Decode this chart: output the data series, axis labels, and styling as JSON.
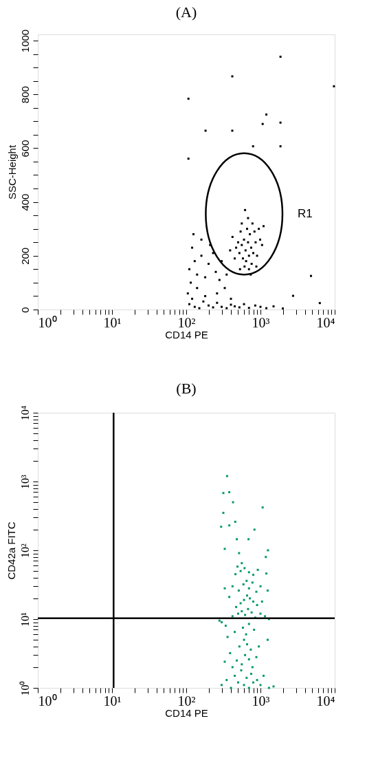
{
  "chart_data": [
    {
      "type": "scatter",
      "title": "(A)",
      "xlabel": "CD14 PE",
      "ylabel": "SSC-Height",
      "log": "x",
      "grid": false,
      "marker": "square",
      "annotations": [
        "R1"
      ],
      "xlim": [
        1,
        10000
      ],
      "ylim": [
        0,
        1023
      ],
      "xticks": [
        {
          "value": 1,
          "label": "10⁰"
        },
        {
          "value": 2,
          "label": null
        },
        {
          "value": 3,
          "label": null
        },
        {
          "value": 4,
          "label": null
        },
        {
          "value": 5,
          "label": null
        },
        {
          "value": 6,
          "label": null
        },
        {
          "value": 7,
          "label": null
        },
        {
          "value": 8,
          "label": null
        },
        {
          "value": 9,
          "label": null
        },
        {
          "value": 10,
          "label": "10¹"
        },
        {
          "value": 20,
          "label": null
        },
        {
          "value": 30,
          "label": null
        },
        {
          "value": 40,
          "label": null
        },
        {
          "value": 50,
          "label": null
        },
        {
          "value": 60,
          "label": null
        },
        {
          "value": 70,
          "label": null
        },
        {
          "value": 80,
          "label": null
        },
        {
          "value": 90,
          "label": null
        },
        {
          "value": 100,
          "label": "10²"
        },
        {
          "value": 200,
          "label": null
        },
        {
          "value": 300,
          "label": null
        },
        {
          "value": 400,
          "label": null
        },
        {
          "value": 500,
          "label": null
        },
        {
          "value": 600,
          "label": null
        },
        {
          "value": 700,
          "label": null
        },
        {
          "value": 800,
          "label": null
        },
        {
          "value": 900,
          "label": null
        },
        {
          "value": 1000,
          "label": "10³"
        },
        {
          "value": 2000,
          "label": null
        },
        {
          "value": 3000,
          "label": null
        },
        {
          "value": 4000,
          "label": null
        },
        {
          "value": 5000,
          "label": null
        },
        {
          "value": 6000,
          "label": null
        },
        {
          "value": 7000,
          "label": null
        },
        {
          "value": 8000,
          "label": null
        },
        {
          "value": 9000,
          "label": null
        },
        {
          "value": 10000,
          "label": "10⁴"
        }
      ],
      "yticks": [
        0,
        {
          "value": 50,
          "label": null
        },
        {
          "value": 100,
          "label": null
        },
        {
          "value": 150,
          "label": null
        },
        200,
        {
          "value": 250,
          "label": null
        },
        {
          "value": 300,
          "label": null
        },
        {
          "value": 350,
          "label": null
        },
        400,
        {
          "value": 450,
          "label": null
        },
        {
          "value": 500,
          "label": null
        },
        {
          "value": 550,
          "label": null
        },
        600,
        {
          "value": 650,
          "label": null
        },
        {
          "value": 700,
          "label": null
        },
        {
          "value": 750,
          "label": null
        },
        800,
        {
          "value": 850,
          "label": null
        },
        {
          "value": 900,
          "label": null
        },
        {
          "value": 950,
          "label": null
        },
        1000
      ],
      "series": [
        {
          "type": "scatter",
          "color": "#000000",
          "x": [
            630,
            560,
            700,
            600,
            680,
            520,
            750,
            640,
            580,
            720,
            500,
            800,
            660,
            540,
            860,
            470,
            900,
            610,
            700,
            760,
            450,
            830,
            560,
            680,
            620,
            990,
            1050,
            420,
            390,
            880,
            950,
            530,
            780,
            1100,
            740,
            110,
            130,
            150,
            120,
            170,
            200,
            230,
            260,
            300,
            350,
            400,
            450,
            520,
            600,
            700,
            850,
            1000,
            1200,
            1500,
            2000,
            105,
            140,
            180,
            115,
            110,
            130,
            160,
            120,
            200,
            250,
            180,
            140,
            230,
            300,
            280,
            330,
            160,
            125,
            210,
            350,
            260,
            400,
            107,
            417,
            1860,
            182,
            417,
            1200,
            1070,
            1860,
            1860,
            795,
            107,
            4790,
            9770,
            2750,
            6300
          ],
          "values": [
            220,
            240,
            200,
            260,
            250,
            210,
            230,
            180,
            190,
            280,
            250,
            210,
            300,
            290,
            250,
            230,
            200,
            160,
            150,
            170,
            190,
            290,
            320,
            340,
            370,
            260,
            240,
            270,
            220,
            160,
            300,
            150,
            320,
            310,
            130,
            20,
            10,
            5,
            40,
            30,
            15,
            8,
            25,
            10,
            5,
            18,
            12,
            8,
            20,
            6,
            15,
            10,
            5,
            12,
            4,
            60,
            80,
            50,
            100,
            150,
            180,
            200,
            230,
            170,
            140,
            120,
            130,
            210,
            180,
            110,
            80,
            260,
            280,
            240,
            130,
            60,
            40,
            784,
            867,
            940,
            665,
            665,
            725,
            690,
            695,
            607,
            607,
            561,
            125,
            830,
            51,
            24
          ]
        }
      ]
    },
    {
      "type": "scatter",
      "title": "(B)",
      "xlabel": "CD14 PE",
      "ylabel": "CD42a FITC",
      "log": "xy",
      "grid": false,
      "marker": "square",
      "xlim": [
        1,
        10000
      ],
      "ylim": [
        1,
        10000
      ],
      "xticks": [
        {
          "value": 1,
          "label": "10⁰"
        },
        {
          "value": 2,
          "label": null
        },
        {
          "value": 3,
          "label": null
        },
        {
          "value": 4,
          "label": null
        },
        {
          "value": 5,
          "label": null
        },
        {
          "value": 6,
          "label": null
        },
        {
          "value": 7,
          "label": null
        },
        {
          "value": 8,
          "label": null
        },
        {
          "value": 9,
          "label": null
        },
        {
          "value": 10,
          "label": "10¹"
        },
        {
          "value": 20,
          "label": null
        },
        {
          "value": 30,
          "label": null
        },
        {
          "value": 40,
          "label": null
        },
        {
          "value": 50,
          "label": null
        },
        {
          "value": 60,
          "label": null
        },
        {
          "value": 70,
          "label": null
        },
        {
          "value": 80,
          "label": null
        },
        {
          "value": 90,
          "label": null
        },
        {
          "value": 100,
          "label": "10²"
        },
        {
          "value": 200,
          "label": null
        },
        {
          "value": 300,
          "label": null
        },
        {
          "value": 400,
          "label": null
        },
        {
          "value": 500,
          "label": null
        },
        {
          "value": 600,
          "label": null
        },
        {
          "value": 700,
          "label": null
        },
        {
          "value": 800,
          "label": null
        },
        {
          "value": 900,
          "label": null
        },
        {
          "value": 1000,
          "label": "10³"
        },
        {
          "value": 2000,
          "label": null
        },
        {
          "value": 3000,
          "label": null
        },
        {
          "value": 4000,
          "label": null
        },
        {
          "value": 5000,
          "label": null
        },
        {
          "value": 6000,
          "label": null
        },
        {
          "value": 7000,
          "label": null
        },
        {
          "value": 8000,
          "label": null
        },
        {
          "value": 9000,
          "label": null
        },
        {
          "value": 10000,
          "label": "10⁴"
        }
      ],
      "yticks": [
        {
          "value": 1,
          "label": "10⁰"
        },
        {
          "value": 2,
          "label": null
        },
        {
          "value": 3,
          "label": null
        },
        {
          "value": 4,
          "label": null
        },
        {
          "value": 5,
          "label": null
        },
        {
          "value": 6,
          "label": null
        },
        {
          "value": 7,
          "label": null
        },
        {
          "value": 8,
          "label": null
        },
        {
          "value": 9,
          "label": null
        },
        {
          "value": 10,
          "label": "10¹"
        },
        {
          "value": 20,
          "label": null
        },
        {
          "value": 30,
          "label": null
        },
        {
          "value": 40,
          "label": null
        },
        {
          "value": 50,
          "label": null
        },
        {
          "value": 60,
          "label": null
        },
        {
          "value": 70,
          "label": null
        },
        {
          "value": 80,
          "label": null
        },
        {
          "value": 90,
          "label": null
        },
        {
          "value": 100,
          "label": "10²"
        },
        {
          "value": 200,
          "label": null
        },
        {
          "value": 300,
          "label": null
        },
        {
          "value": 400,
          "label": null
        },
        {
          "value": 500,
          "label": null
        },
        {
          "value": 600,
          "label": null
        },
        {
          "value": 700,
          "label": null
        },
        {
          "value": 800,
          "label": null
        },
        {
          "value": 900,
          "label": null
        },
        {
          "value": 1000,
          "label": "10³"
        },
        {
          "value": 2000,
          "label": null
        },
        {
          "value": 3000,
          "label": null
        },
        {
          "value": 4000,
          "label": null
        },
        {
          "value": 5000,
          "label": null
        },
        {
          "value": 6000,
          "label": null
        },
        {
          "value": 7000,
          "label": null
        },
        {
          "value": 8000,
          "label": null
        },
        {
          "value": 9000,
          "label": null
        },
        {
          "value": 10000,
          "label": "10⁴"
        }
      ],
      "ref_lines": [
        {
          "axis": "x",
          "value": 10.5,
          "color": "#000000"
        },
        {
          "axis": "y",
          "value": 10.3,
          "color": "#000000"
        }
      ],
      "series": [
        {
          "type": "scatter",
          "color": "#009966",
          "x": [
            300,
            350,
            400,
            450,
            500,
            550,
            600,
            650,
            700,
            750,
            800,
            900,
            1000,
            1100,
            1300,
            1500,
            420,
            480,
            560,
            620,
            700,
            780,
            880,
            330,
            390,
            520,
            600,
            660,
            740,
            950,
            1250,
            360,
            450,
            580,
            640,
            700,
            820,
            300,
            340,
            420,
            500,
            560,
            620,
            680,
            760,
            850,
            1000,
            1150,
            1300,
            280,
            470,
            540,
            600,
            660,
            720,
            800,
            900,
            1050,
            380,
            330,
            420,
            510,
            590,
            650,
            700,
            780,
            880,
            1000,
            1250,
            460,
            540,
            610,
            700,
            800,
            920,
            1200,
            560,
            490,
            355,
            316,
            380,
            427,
            1070,
            316,
            457,
            295,
            380,
            830,
            480,
            690,
            330,
            515,
            1260,
            1180
          ],
          "values": [
            1.1,
            1.3,
            1.0,
            1.5,
            1.2,
            1.8,
            1.1,
            1.4,
            1.0,
            1.6,
            1.2,
            1.3,
            1.1,
            1.5,
            1.0,
            1.05,
            2.0,
            2.5,
            2.2,
            3.0,
            2.6,
            2.0,
            2.8,
            2.4,
            3.2,
            4.0,
            5.0,
            4.3,
            3.6,
            4.0,
            5.0,
            5.5,
            6.5,
            7.5,
            6.0,
            8.5,
            7.0,
            9.0,
            8.0,
            11,
            12,
            13,
            11.5,
            14,
            12.5,
            10.5,
            12,
            11,
            10,
            9.5,
            15,
            17,
            19,
            22,
            20,
            18,
            16,
            18,
            21,
            28,
            30,
            26,
            32,
            36,
            28,
            34,
            25,
            30,
            26,
            45,
            50,
            55,
            48,
            44,
            52,
            46,
            65,
            58,
            1200,
            680,
            700,
            500,
            420,
            350,
            260,
            220,
            230,
            200,
            145,
            145,
            105,
            91,
            100,
            80
          ]
        }
      ]
    }
  ]
}
